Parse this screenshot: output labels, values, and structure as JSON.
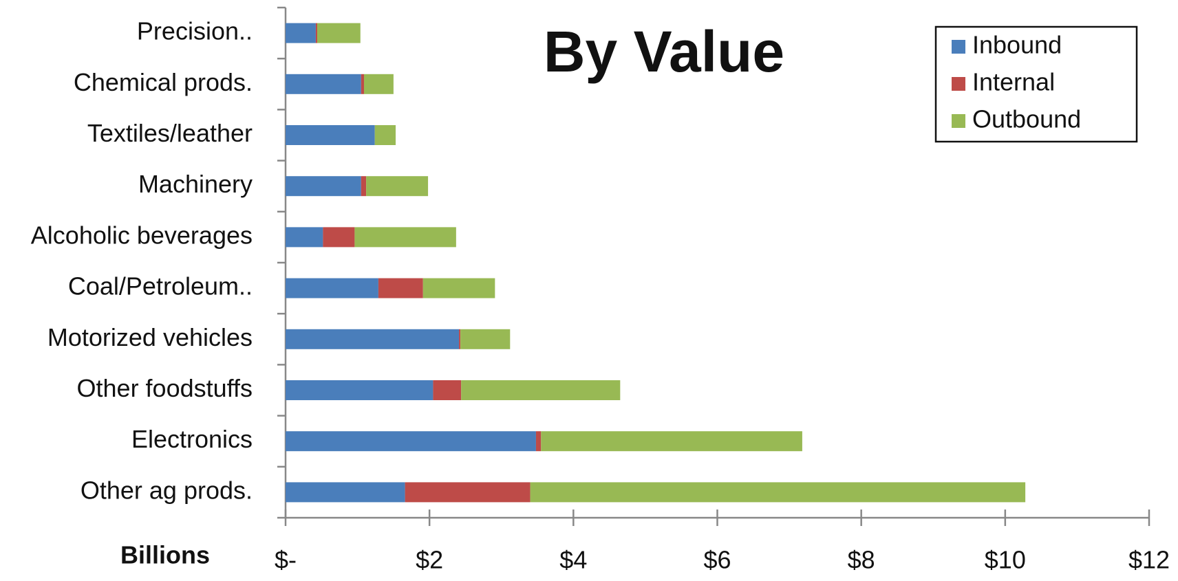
{
  "chart_data": {
    "type": "stacked-barh",
    "title": "By Value",
    "x_label": "Billions",
    "categories": [
      "Precision..",
      "Chemical prods.",
      "Textiles/leather",
      "Machinery",
      "Alcoholic beverages",
      "Coal/Petroleum..",
      "Motorized vehicles",
      "Other foodstuffs",
      "Electronics",
      "Other ag prods."
    ],
    "series": [
      {
        "name": "Inbound",
        "color": "#4a7ebb",
        "values": [
          0.42,
          1.05,
          1.24,
          1.05,
          0.52,
          1.29,
          2.41,
          2.05,
          3.48,
          1.66
        ]
      },
      {
        "name": "Internal",
        "color": "#be4b48",
        "values": [
          0.02,
          0.04,
          0,
          0.07,
          0.44,
          0.62,
          0.02,
          0.39,
          0.07,
          1.74
        ]
      },
      {
        "name": "Outbound",
        "color": "#98b954",
        "values": [
          0.6,
          0.41,
          0.29,
          0.86,
          1.41,
          1.0,
          0.69,
          2.21,
          3.63,
          6.88
        ]
      }
    ],
    "xlim": [
      0,
      12
    ],
    "xticks": [
      {
        "value": 0,
        "label": "$-"
      },
      {
        "value": 2,
        "label": "$2"
      },
      {
        "value": 4,
        "label": "$4"
      },
      {
        "value": 6,
        "label": "$6"
      },
      {
        "value": 8,
        "label": "$8"
      },
      {
        "value": 10,
        "label": "$10"
      },
      {
        "value": 12,
        "label": "$12"
      }
    ],
    "legend": "top-right",
    "grid": false
  }
}
